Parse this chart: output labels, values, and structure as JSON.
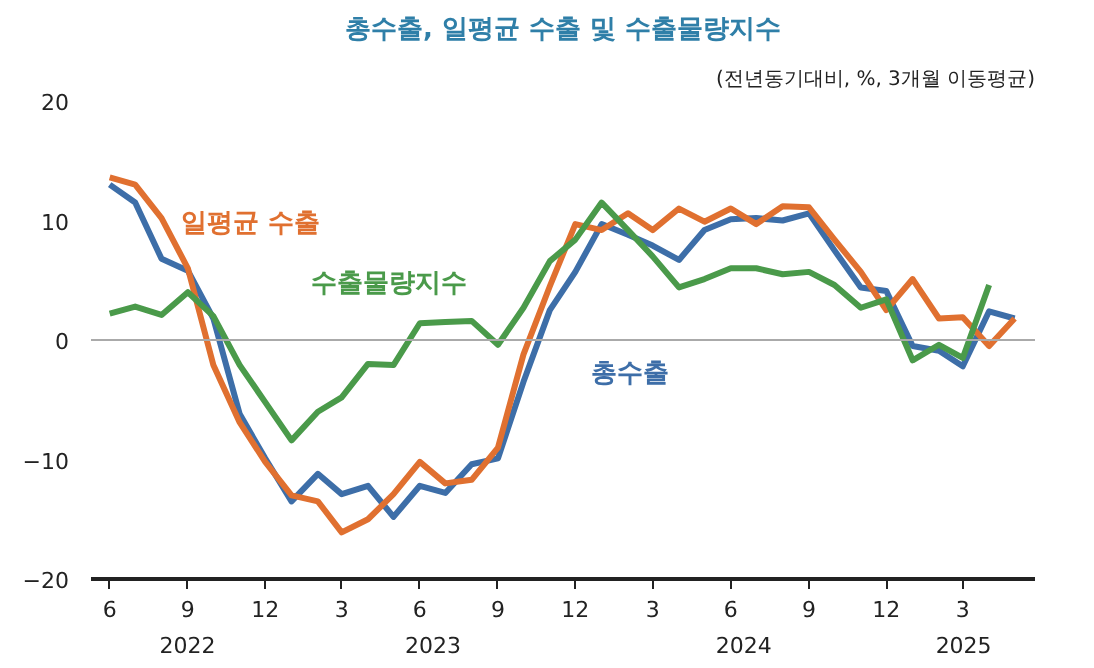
{
  "chart_data": {
    "type": "line",
    "title": "총수출, 일평균 수출 및 수출물량지수",
    "subtitle": "(전년동기대비, %, 3개월 이동평균)",
    "x": [
      "2022-06",
      "2022-07",
      "2022-08",
      "2022-09",
      "2022-10",
      "2022-11",
      "2022-12",
      "2023-01",
      "2023-02",
      "2023-03",
      "2023-04",
      "2023-05",
      "2023-06",
      "2023-07",
      "2023-08",
      "2023-09",
      "2023-10",
      "2023-11",
      "2023-12",
      "2024-01",
      "2024-02",
      "2024-03",
      "2024-04",
      "2024-05",
      "2024-06",
      "2024-07",
      "2024-08",
      "2024-09",
      "2024-10",
      "2024-11",
      "2024-12",
      "2025-01",
      "2025-02",
      "2025-03",
      "2025-04",
      "2025-05"
    ],
    "series": [
      {
        "name": "총수출",
        "color": "#3d6ea8",
        "values": [
          13.0,
          11.5,
          6.8,
          5.8,
          1.8,
          -6.2,
          -9.9,
          -13.5,
          -11.2,
          -12.9,
          -12.2,
          -14.8,
          -12.2,
          -12.8,
          -10.4,
          -9.9,
          -3.5,
          2.5,
          5.7,
          9.7,
          8.8,
          7.9,
          6.7,
          9.2,
          10.1,
          10.2,
          10.0,
          10.6,
          7.5,
          4.4,
          4.1,
          -0.5,
          -0.9,
          -2.2,
          2.4,
          1.8
        ]
      },
      {
        "name": "일평균 수출",
        "color": "#e07030",
        "values": [
          13.6,
          13.0,
          10.2,
          6.0,
          -2.1,
          -6.9,
          -10.2,
          -13.0,
          -13.5,
          -16.1,
          -15.0,
          -12.9,
          -10.2,
          -12.0,
          -11.7,
          -9.0,
          -1.2,
          4.5,
          9.7,
          9.2,
          10.6,
          9.2,
          11.0,
          9.9,
          11.0,
          9.7,
          11.2,
          11.1,
          8.4,
          5.7,
          2.5,
          5.1,
          1.8,
          1.9,
          -0.5,
          1.8
        ]
      },
      {
        "name": "수출물량지수",
        "color": "#4a9a4a",
        "values": [
          2.2,
          2.8,
          2.1,
          4.0,
          2.0,
          -2.1,
          -5.2,
          -8.4,
          -6.0,
          -4.8,
          -2.0,
          -2.1,
          1.4,
          1.5,
          1.6,
          -0.4,
          2.7,
          6.6,
          8.4,
          11.5,
          9.2,
          7.0,
          4.4,
          5.1,
          6.0,
          6.0,
          5.5,
          5.7,
          4.6,
          2.7,
          3.4,
          -1.7,
          -0.4,
          -1.5,
          4.6,
          null
        ]
      }
    ],
    "xlim": [
      "2022-05-10",
      "2025-05-25"
    ],
    "xticks": [
      {
        "value": "2022-06",
        "label": "6"
      },
      {
        "value": "2022-09",
        "label": "9"
      },
      {
        "value": "2022-12",
        "label": "12"
      },
      {
        "value": "2023-03",
        "label": "3"
      },
      {
        "value": "2023-06",
        "label": "6"
      },
      {
        "value": "2023-09",
        "label": "9"
      },
      {
        "value": "2023-12",
        "label": "12"
      },
      {
        "value": "2024-03",
        "label": "3"
      },
      {
        "value": "2024-06",
        "label": "6"
      },
      {
        "value": "2024-09",
        "label": "9"
      },
      {
        "value": "2024-12",
        "label": "12"
      },
      {
        "value": "2025-03",
        "label": "3"
      }
    ],
    "ylim": [
      -20,
      20
    ],
    "yticks": [
      -20,
      -10,
      0,
      10,
      20
    ],
    "ref_lines": [
      {
        "axis": "y",
        "value": 0,
        "color": "#aaaaaa"
      }
    ],
    "annotations": [
      "2022",
      "2023",
      "2024",
      "2025"
    ],
    "grid": false,
    "legend": false,
    "line_style": "solid",
    "marker": "none"
  }
}
